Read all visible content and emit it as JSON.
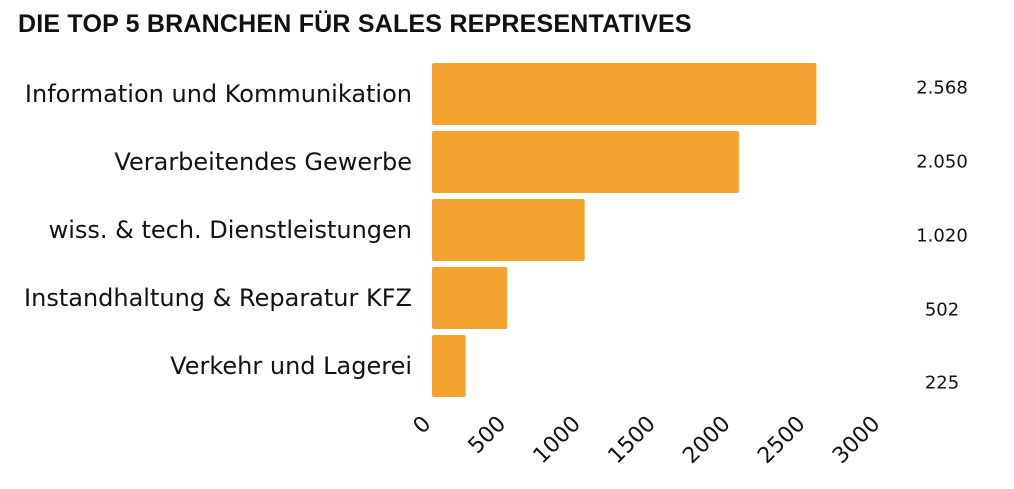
{
  "chart_data": {
    "type": "bar",
    "orientation": "horizontal",
    "title": "DIE TOP 5 BRANCHEN FÜR SALES REPRESENTATIVES",
    "categories": [
      "Information und Kommunikation",
      "Verarbeitendes Gewerbe",
      "wiss. & tech. Dienstleistungen",
      "Instandhaltung & Reparatur KFZ",
      "Verkehr und Lagerei"
    ],
    "values": [
      2568,
      2050,
      1020,
      502,
      225
    ],
    "value_labels": [
      "2.568",
      "2.050",
      "1.020",
      "502",
      "225"
    ],
    "xlim": [
      0,
      3000
    ],
    "x_ticks": [
      0,
      500,
      1000,
      1500,
      2000,
      2500,
      3000
    ],
    "x_tick_labels": [
      "0",
      "500",
      "1000",
      "1500",
      "2000",
      "2500",
      "3000"
    ],
    "xlabel": "",
    "ylabel": "",
    "grid": false,
    "legend": "none",
    "bar_color": "#F4A230"
  }
}
